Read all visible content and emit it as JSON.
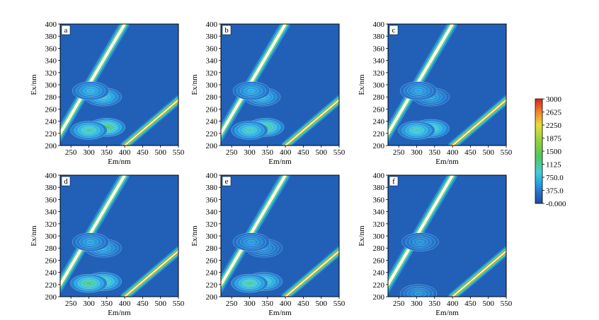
{
  "chart_data": {
    "type": "heatmap",
    "subtype": "excitation-emission-matrix-contour",
    "xlabel": "Em/nm",
    "ylabel": "Ex/nm",
    "xlim": [
      220,
      550
    ],
    "ylim": [
      200,
      400
    ],
    "xticks": [
      "250",
      "300",
      "350",
      "400",
      "450",
      "500",
      "550"
    ],
    "yticks": [
      "200",
      "220",
      "240",
      "260",
      "280",
      "300",
      "320",
      "340",
      "360",
      "380",
      "400"
    ],
    "colorbar": {
      "ticks": [
        "3000",
        "2625",
        "2250",
        "1875",
        "1500",
        "1125",
        "750.0",
        "375.0",
        "-0.000"
      ],
      "min": 0,
      "max": 3000
    },
    "panels": [
      {
        "label": "a",
        "peaks": [
          {
            "em": 340,
            "ex": 280,
            "intensity": 850
          },
          {
            "em": 350,
            "ex": 230,
            "intensity": 1300
          },
          {
            "em": 300,
            "ex": 225,
            "intensity": 1100
          },
          {
            "em": 305,
            "ex": 290,
            "intensity": 700
          }
        ]
      },
      {
        "label": "b",
        "peaks": [
          {
            "em": 335,
            "ex": 280,
            "intensity": 750
          },
          {
            "em": 345,
            "ex": 230,
            "intensity": 1200
          },
          {
            "em": 300,
            "ex": 225,
            "intensity": 1000
          },
          {
            "em": 305,
            "ex": 290,
            "intensity": 650
          }
        ]
      },
      {
        "label": "c",
        "peaks": [
          {
            "em": 340,
            "ex": 280,
            "intensity": 600
          },
          {
            "em": 340,
            "ex": 228,
            "intensity": 1100
          },
          {
            "em": 300,
            "ex": 225,
            "intensity": 1000
          },
          {
            "em": 305,
            "ex": 290,
            "intensity": 600
          }
        ]
      },
      {
        "label": "d",
        "peaks": [
          {
            "em": 340,
            "ex": 280,
            "intensity": 650
          },
          {
            "em": 340,
            "ex": 225,
            "intensity": 1150
          },
          {
            "em": 300,
            "ex": 222,
            "intensity": 1200
          },
          {
            "em": 305,
            "ex": 290,
            "intensity": 600
          }
        ]
      },
      {
        "label": "e",
        "peaks": [
          {
            "em": 340,
            "ex": 280,
            "intensity": 500
          },
          {
            "em": 340,
            "ex": 225,
            "intensity": 1000
          },
          {
            "em": 300,
            "ex": 222,
            "intensity": 1100
          },
          {
            "em": 305,
            "ex": 290,
            "intensity": 550
          }
        ]
      },
      {
        "label": "f",
        "peaks": [
          {
            "em": 305,
            "ex": 205,
            "intensity": 500
          },
          {
            "em": 310,
            "ex": 290,
            "intensity": 500
          }
        ]
      }
    ]
  }
}
